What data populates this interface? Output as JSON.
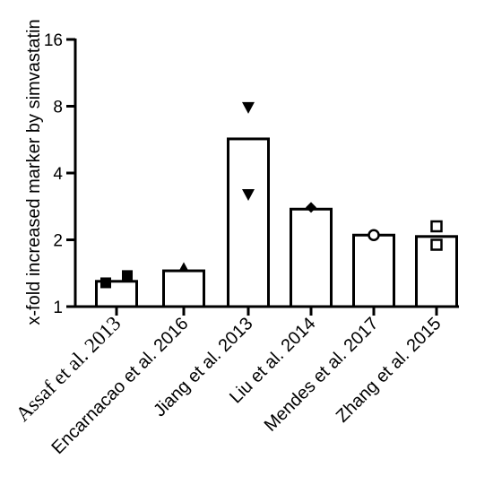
{
  "chart_data": {
    "type": "bar",
    "title": "",
    "xlabel": "",
    "ylabel": "x-fold increased marker by simvastatin",
    "yscale": "log2",
    "ylim": [
      1,
      16
    ],
    "yticks": [
      1,
      2,
      4,
      8,
      16
    ],
    "ytick_labels": [
      "1",
      "2",
      "4",
      "8",
      "16"
    ],
    "grid": false,
    "legend": "none",
    "categories": [
      "Assaf et al. 2013",
      "Encarnacao et al. 2016",
      "Jiang et al. 2013",
      "Liu et al. 2014",
      "Mendes et al. 2017",
      "Zhang et al. 2015"
    ],
    "values": [
      1.3,
      1.45,
      5.7,
      2.75,
      2.1,
      2.07
    ],
    "points": [
      {
        "category": "Assaf et al. 2013",
        "marker": "square-filled",
        "values": [
          1.28,
          1.38
        ]
      },
      {
        "category": "Encarnacao et al. 2016",
        "marker": "triangle-up-filled",
        "values": [
          1.5
        ]
      },
      {
        "category": "Jiang et al. 2013",
        "marker": "triangle-down-filled",
        "values": [
          7.9,
          3.2
        ]
      },
      {
        "category": "Liu et al. 2014",
        "marker": "diamond-filled",
        "values": [
          2.8
        ]
      },
      {
        "category": "Mendes et al. 2017",
        "marker": "circle-open",
        "values": [
          2.1
        ]
      },
      {
        "category": "Zhang et al. 2015",
        "marker": "square-open",
        "values": [
          2.3,
          1.9
        ]
      }
    ],
    "colors": {
      "bar_fill": "#ffffff",
      "stroke": "#000000"
    }
  }
}
